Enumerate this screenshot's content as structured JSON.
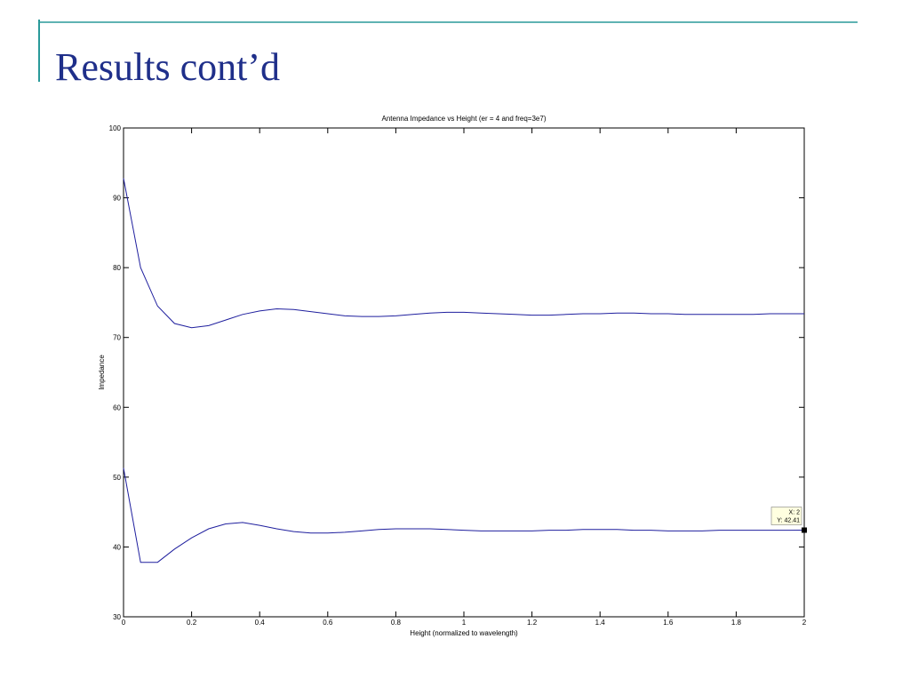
{
  "slide_title": "Results cont’d",
  "chart_data": {
    "type": "line",
    "title": "Antenna Impedance vs Height (er = 4 and freq=3e7)",
    "x_label": "Height (normalized to wavelength)",
    "y_label": "Impedance",
    "x": [
      0,
      0.05,
      0.1,
      0.15,
      0.2,
      0.25,
      0.3,
      0.35,
      0.4,
      0.45,
      0.5,
      0.55,
      0.6,
      0.65,
      0.7,
      0.75,
      0.8,
      0.85,
      0.9,
      0.95,
      1.0,
      1.05,
      1.1,
      1.15,
      1.2,
      1.25,
      1.3,
      1.35,
      1.4,
      1.45,
      1.5,
      1.55,
      1.6,
      1.65,
      1.7,
      1.75,
      1.8,
      1.85,
      1.9,
      1.95,
      2
    ],
    "series": [
      {
        "color": "#1f1f9e",
        "values": [
          92.8,
          80,
          74.5,
          72,
          71.4,
          71.7,
          72.5,
          73.3,
          73.8,
          74.1,
          74,
          73.7,
          73.4,
          73.1,
          73,
          73,
          73.1,
          73.3,
          73.5,
          73.6,
          73.6,
          73.5,
          73.4,
          73.3,
          73.2,
          73.2,
          73.3,
          73.4,
          73.4,
          73.5,
          73.5,
          73.4,
          73.4,
          73.3,
          73.3,
          73.3,
          73.3,
          73.3,
          73.4,
          73.4,
          73.4
        ]
      },
      {
        "color": "#1f1f9e",
        "values": [
          51.3,
          37.8,
          37.8,
          39.7,
          41.3,
          42.6,
          43.3,
          43.5,
          43.1,
          42.6,
          42.2,
          42,
          42,
          42.1,
          42.3,
          42.5,
          42.6,
          42.6,
          42.6,
          42.5,
          42.4,
          42.3,
          42.3,
          42.3,
          42.3,
          42.4,
          42.4,
          42.5,
          42.5,
          42.5,
          42.4,
          42.4,
          42.3,
          42.3,
          42.3,
          42.4,
          42.4,
          42.4,
          42.4,
          42.4,
          42.41
        ]
      }
    ],
    "xlim": [
      0,
      2
    ],
    "xticks": [
      0,
      0.2,
      0.4,
      0.6,
      0.8,
      1,
      1.2,
      1.4,
      1.6,
      1.8,
      2
    ],
    "ylim": [
      30,
      100
    ],
    "yticks": [
      30,
      40,
      50,
      60,
      70,
      80,
      90,
      100
    ],
    "annotations": [
      "X: 2",
      "Y: 42.41"
    ]
  }
}
